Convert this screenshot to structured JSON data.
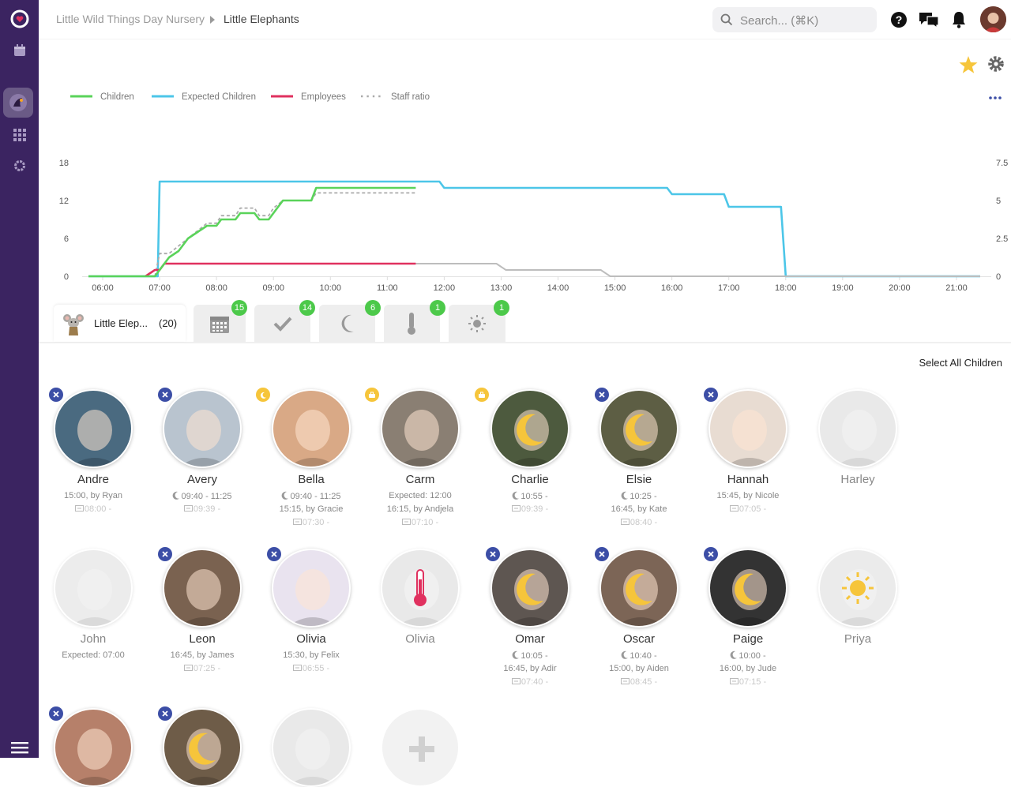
{
  "breadcrumb": {
    "org": "Little Wild Things Day Nursery",
    "room": "Little Elephants"
  },
  "search": {
    "placeholder": "Search... (⌘K)"
  },
  "colors": {
    "sidebar": "#3b2461",
    "children": "#5ad35a",
    "expected": "#4cc6e8",
    "employees": "#e0315f",
    "ratio": "#aaaaaa",
    "badge": "#4cc94a",
    "remove": "#3c4ea6",
    "sleep": "#f6c53b"
  },
  "chart_data": {
    "type": "line",
    "legend": [
      "Children",
      "Expected Children",
      "Employees",
      "Staff ratio"
    ],
    "x_ticks": [
      "06:00",
      "07:00",
      "08:00",
      "09:00",
      "10:00",
      "11:00",
      "12:00",
      "13:00",
      "14:00",
      "15:00",
      "16:00",
      "17:00",
      "18:00",
      "19:00",
      "20:00",
      "21:00"
    ],
    "y_left_ticks": [
      "0",
      "6",
      "12",
      "18"
    ],
    "y_right_ticks": [
      "0",
      "2.5",
      "5",
      "7.5"
    ],
    "ylim_left": [
      0,
      18
    ],
    "ylim_right": [
      0,
      7.5
    ],
    "xlim": [
      "05:45",
      "21:30"
    ],
    "series": [
      {
        "name": "Children",
        "axis": "left",
        "points": [
          [
            "05:45",
            0
          ],
          [
            "06:55",
            0
          ],
          [
            "07:00",
            1
          ],
          [
            "07:10",
            3
          ],
          [
            "07:20",
            4
          ],
          [
            "07:30",
            6
          ],
          [
            "07:40",
            7
          ],
          [
            "07:50",
            8
          ],
          [
            "08:00",
            8
          ],
          [
            "08:05",
            9
          ],
          [
            "08:20",
            9
          ],
          [
            "08:25",
            10
          ],
          [
            "08:40",
            10
          ],
          [
            "08:45",
            9
          ],
          [
            "08:55",
            9
          ],
          [
            "09:00",
            10
          ],
          [
            "09:10",
            12
          ],
          [
            "09:40",
            12
          ],
          [
            "09:45",
            14
          ],
          [
            "11:30",
            14
          ]
        ]
      },
      {
        "name": "Expected Children",
        "axis": "left",
        "points": [
          [
            "05:45",
            0
          ],
          [
            "06:58",
            0
          ],
          [
            "07:00",
            15
          ],
          [
            "11:55",
            15
          ],
          [
            "12:00",
            14
          ],
          [
            "15:55",
            14
          ],
          [
            "16:00",
            13
          ],
          [
            "16:55",
            13
          ],
          [
            "17:00",
            11
          ],
          [
            "17:55",
            11
          ],
          [
            "18:00",
            0
          ],
          [
            "21:25",
            0
          ]
        ]
      },
      {
        "name": "Employees",
        "axis": "left",
        "points": [
          [
            "06:45",
            0
          ],
          [
            "06:55",
            1
          ],
          [
            "07:00",
            1
          ],
          [
            "07:05",
            2
          ],
          [
            "11:30",
            2
          ]
        ]
      },
      {
        "name": "Employees (projected)",
        "axis": "left",
        "points": [
          [
            "11:30",
            2
          ],
          [
            "12:55",
            2
          ],
          [
            "13:05",
            1
          ],
          [
            "14:45",
            1
          ],
          [
            "14:55",
            0
          ],
          [
            "21:25",
            0
          ]
        ]
      },
      {
        "name": "Staff ratio",
        "axis": "right",
        "points": [
          [
            "06:55",
            0
          ],
          [
            "07:00",
            1.5
          ],
          [
            "07:10",
            1.5
          ],
          [
            "07:20",
            2
          ],
          [
            "07:30",
            2.5
          ],
          [
            "07:40",
            3
          ],
          [
            "07:50",
            3.5
          ],
          [
            "08:00",
            3.5
          ],
          [
            "08:05",
            4
          ],
          [
            "08:20",
            4
          ],
          [
            "08:25",
            4.5
          ],
          [
            "08:40",
            4.5
          ],
          [
            "08:45",
            4
          ],
          [
            "08:55",
            4
          ],
          [
            "09:00",
            4.5
          ],
          [
            "09:10",
            5
          ],
          [
            "09:40",
            5
          ],
          [
            "09:45",
            5.5
          ],
          [
            "11:30",
            5.5
          ]
        ]
      }
    ]
  },
  "tabs": {
    "room_label": "Little Elep...",
    "room_count": "(20)",
    "badges": [
      "15",
      "14",
      "6",
      "1",
      "1"
    ]
  },
  "select_all_label": "Select All Children",
  "children": [
    {
      "name": "Andre",
      "line1": "15:00, by Ryan",
      "line2": "08:00 -",
      "line3": "",
      "mark": "remove",
      "faded": false,
      "bg": "#4a6a80",
      "overlay": ""
    },
    {
      "name": "Avery",
      "line1": "09:40 - 11:25",
      "line2": "09:39 -",
      "line3": "",
      "mark": "remove",
      "faded": false,
      "bg": "#b9c4cf",
      "overlay": "",
      "line1_icon": "moon"
    },
    {
      "name": "Bella",
      "line1": "09:40 - 11:25",
      "line2": "15:15, by Gracie",
      "line3": "07:30 -",
      "mark": "moon",
      "faded": false,
      "bg": "#d9a986",
      "overlay": "",
      "line1_icon": "moon"
    },
    {
      "name": "Carm",
      "line1": "Expected: 12:00",
      "line2": "16:15, by Andjela",
      "line3": "07:10 -",
      "mark": "bag",
      "faded": false,
      "bg": "#8a7f73",
      "overlay": ""
    },
    {
      "name": "Charlie",
      "line1": "10:55 -",
      "line2": "09:39 -",
      "line3": "",
      "mark": "bag",
      "faded": false,
      "bg": "#4d5a3e",
      "overlay": "moon",
      "line1_icon": "moon"
    },
    {
      "name": "Elsie",
      "line1": "10:25 -",
      "line2": "16:45, by Kate",
      "line3": "08:40 -",
      "mark": "remove",
      "faded": false,
      "bg": "#5d5e44",
      "overlay": "moon",
      "line1_icon": "moon"
    },
    {
      "name": "Hannah",
      "line1": "15:45, by Nicole",
      "line2": "07:05 -",
      "line3": "",
      "mark": "remove",
      "faded": false,
      "bg": "#e8dcd2",
      "overlay": ""
    },
    {
      "name": "Harley",
      "line1": "",
      "line2": "",
      "line3": "",
      "mark": "",
      "faded": true,
      "bg": "#cfcfcf",
      "overlay": ""
    },
    {
      "name": "John",
      "line1": "Expected: 07:00",
      "line2": "",
      "line3": "",
      "mark": "",
      "faded": true,
      "bg": "#d6d6d6",
      "overlay": ""
    },
    {
      "name": "Leon",
      "line1": "16:45, by James",
      "line2": "07:25 -",
      "line3": "",
      "mark": "remove",
      "faded": false,
      "bg": "#7a6250",
      "overlay": ""
    },
    {
      "name": "Olivia",
      "line1": "15:30, by Felix",
      "line2": "06:55 -",
      "line3": "",
      "mark": "remove",
      "faded": false,
      "bg": "#e9e3ef",
      "overlay": ""
    },
    {
      "name": "Olivia",
      "line1": "",
      "line2": "",
      "line3": "",
      "mark": "",
      "faded": true,
      "bg": "#d0d0d0",
      "overlay": "thermometer"
    },
    {
      "name": "Omar",
      "line1": "10:05 -",
      "line2": "16:45, by Adir",
      "line3": "07:40 -",
      "mark": "remove",
      "faded": false,
      "bg": "#5e5651",
      "overlay": "moon",
      "line1_icon": "moon"
    },
    {
      "name": "Oscar",
      "line1": "10:40 -",
      "line2": "15:00, by Aiden",
      "line3": "08:45 -",
      "mark": "remove",
      "faded": false,
      "bg": "#7c6556",
      "overlay": "moon",
      "line1_icon": "moon"
    },
    {
      "name": "Paige",
      "line1": "10:00 -",
      "line2": "16:00, by Jude",
      "line3": "07:15 -",
      "mark": "remove",
      "faded": false,
      "bg": "#333333",
      "overlay": "moon",
      "line1_icon": "moon"
    },
    {
      "name": "Priya",
      "line1": "",
      "line2": "",
      "line3": "",
      "mark": "",
      "faded": true,
      "bg": "#d5d5d5",
      "overlay": "sun"
    },
    {
      "name": "",
      "line1": "",
      "line2": "",
      "line3": "",
      "mark": "remove",
      "faded": false,
      "bg": "#b6806a",
      "overlay": ""
    },
    {
      "name": "",
      "line1": "",
      "line2": "",
      "line3": "",
      "mark": "remove",
      "faded": false,
      "bg": "#6e5c48",
      "overlay": "moon"
    },
    {
      "name": "",
      "line1": "",
      "line2": "",
      "line3": "",
      "mark": "",
      "faded": true,
      "bg": "#cfcfcf",
      "overlay": ""
    },
    {
      "name": "",
      "line1": "",
      "line2": "",
      "line3": "",
      "mark": "",
      "faded": false,
      "bg": "#f2f2f2",
      "overlay": "add"
    }
  ]
}
